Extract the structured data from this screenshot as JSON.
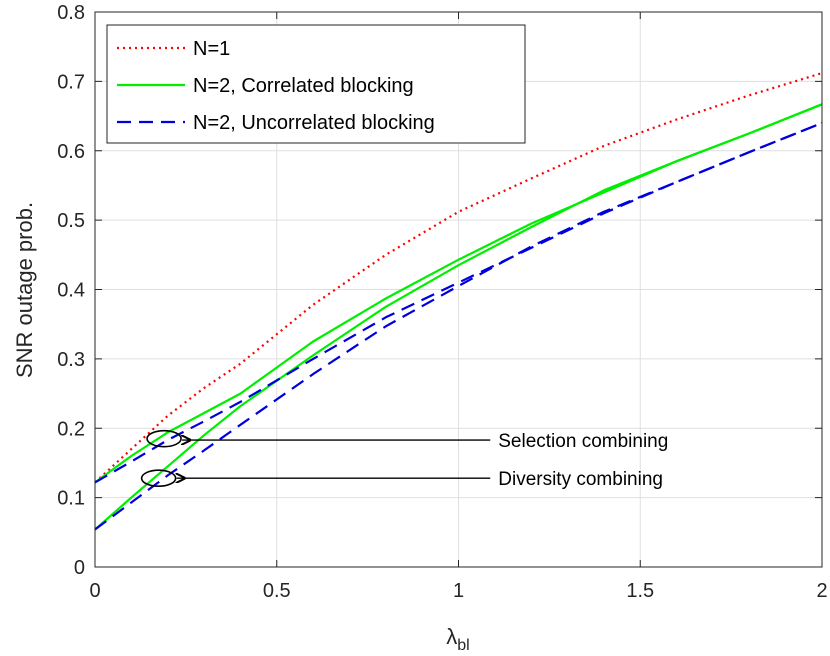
{
  "chart_data": {
    "type": "line",
    "title": "",
    "xlabel_base": "λ",
    "xlabel_sub": "bl",
    "ylabel": "SNR outage prob.",
    "xlim": [
      0,
      2
    ],
    "ylim": [
      0,
      0.8
    ],
    "grid": true,
    "legend_position": "top-left",
    "x_ticks": [
      0,
      0.5,
      1,
      1.5,
      2
    ],
    "x_tick_labels": [
      "0",
      "0.5",
      "1",
      "1.5",
      "2"
    ],
    "y_ticks": [
      0,
      0.1,
      0.2,
      0.3,
      0.4,
      0.5,
      0.6,
      0.7,
      0.8
    ],
    "y_tick_labels": [
      "0",
      "0.1",
      "0.2",
      "0.3",
      "0.4",
      "0.5",
      "0.6",
      "0.7",
      "0.8"
    ],
    "legend": [
      {
        "label": "N=1",
        "color": "#ff0000",
        "style": "dotted"
      },
      {
        "label": "N=2, Correlated blocking",
        "color": "#00ee00",
        "style": "solid"
      },
      {
        "label": "N=2, Uncorrelated blocking",
        "color": "#0000dd",
        "style": "dashed"
      }
    ],
    "series": [
      {
        "name": "N=1",
        "color": "#ff0000",
        "style": "dotted",
        "x": [
          0,
          0.1,
          0.2,
          0.3,
          0.4,
          0.6,
          0.8,
          1.0,
          1.2,
          1.4,
          1.6,
          1.8,
          2.0
        ],
        "y": [
          0.122,
          0.17,
          0.218,
          0.258,
          0.293,
          0.378,
          0.45,
          0.512,
          0.56,
          0.607,
          0.645,
          0.68,
          0.712
        ]
      },
      {
        "name": "N=2, Correlated blocking (Selection combining)",
        "color": "#00ee00",
        "style": "solid",
        "x": [
          0,
          0.1,
          0.2,
          0.3,
          0.4,
          0.6,
          0.8,
          1.0,
          1.2,
          1.4,
          1.6,
          1.8,
          2.0
        ],
        "y": [
          0.122,
          0.16,
          0.194,
          0.222,
          0.25,
          0.325,
          0.387,
          0.443,
          0.495,
          0.54,
          0.585,
          0.625,
          0.667
        ]
      },
      {
        "name": "N=2, Correlated blocking (Diversity combining)",
        "color": "#00ee00",
        "style": "solid",
        "x": [
          0,
          0.1,
          0.2,
          0.3,
          0.4,
          0.6,
          0.8,
          1.0,
          1.2,
          1.4,
          1.6,
          1.8,
          2.0
        ],
        "y": [
          0.054,
          0.1,
          0.145,
          0.19,
          0.232,
          0.305,
          0.375,
          0.435,
          0.49,
          0.543,
          0.585,
          0.625,
          0.667
        ]
      },
      {
        "name": "N=2, Uncorrelated blocking (Selection combining)",
        "color": "#0000dd",
        "style": "dashed",
        "x": [
          0,
          0.1,
          0.2,
          0.3,
          0.4,
          0.6,
          0.8,
          1.0,
          1.2,
          1.4,
          1.6,
          1.8,
          2.0
        ],
        "y": [
          0.122,
          0.152,
          0.183,
          0.21,
          0.238,
          0.3,
          0.36,
          0.41,
          0.46,
          0.51,
          0.555,
          0.598,
          0.64
        ]
      },
      {
        "name": "N=2, Uncorrelated blocking (Diversity combining)",
        "color": "#0000dd",
        "style": "dashed",
        "x": [
          0,
          0.1,
          0.2,
          0.3,
          0.4,
          0.6,
          0.8,
          1.0,
          1.2,
          1.4,
          1.6,
          1.8,
          2.0
        ],
        "y": [
          0.054,
          0.093,
          0.132,
          0.168,
          0.205,
          0.278,
          0.347,
          0.405,
          0.462,
          0.512,
          0.555,
          0.598,
          0.64
        ]
      }
    ],
    "annotations": [
      {
        "text": "Selection combining",
        "ellipse_at": [
          0.19,
          0.185
        ],
        "label_at": [
          1.5,
          0.183
        ]
      },
      {
        "text": "Diversity combining",
        "ellipse_at": [
          0.175,
          0.128
        ],
        "label_at": [
          1.5,
          0.128
        ]
      }
    ]
  }
}
